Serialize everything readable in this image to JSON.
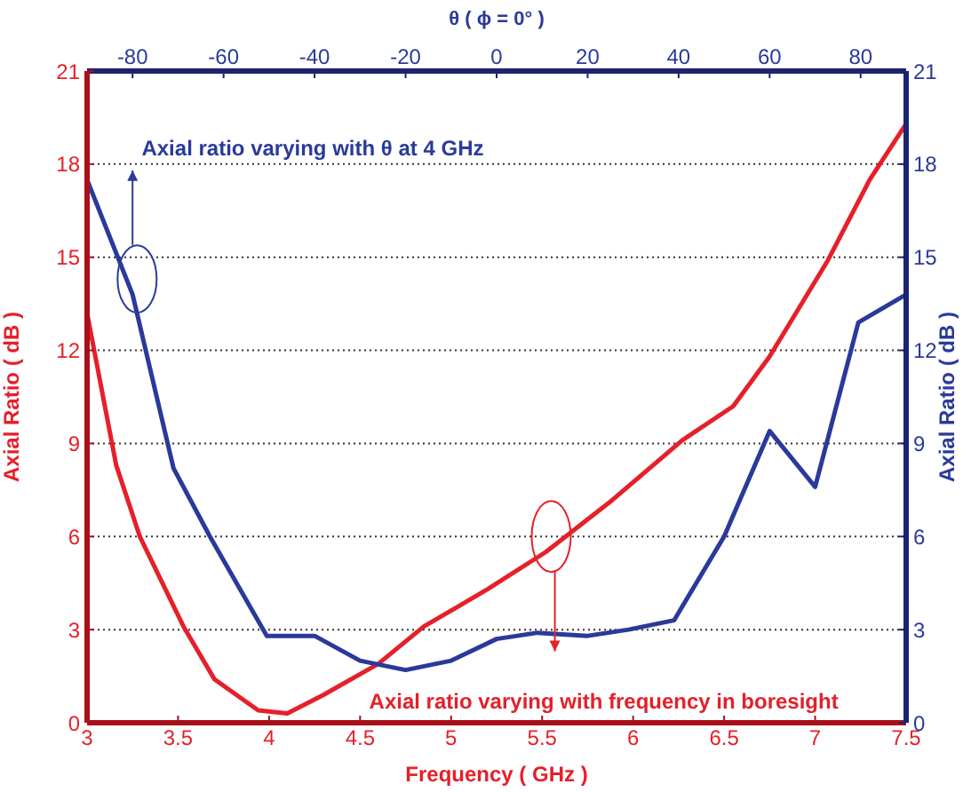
{
  "chart_data": {
    "type": "line",
    "xlabel": "Frequency ( GHz )",
    "x2label": "θ ( ϕ = 0° )",
    "ylabel": "Axial Ratio ( dB )",
    "y2label": "Axial Ratio ( dB )",
    "xlim": [
      3,
      7.5
    ],
    "xticks": [
      3,
      3.5,
      4,
      4.5,
      5,
      5.5,
      6,
      6.5,
      7,
      7.5
    ],
    "x2lim": [
      -90,
      90
    ],
    "x2ticks": [
      -80,
      -60,
      -40,
      -20,
      0,
      20,
      40,
      60,
      80
    ],
    "ylim": [
      0,
      21
    ],
    "yticks": [
      0,
      3,
      6,
      9,
      12,
      15,
      18,
      21
    ],
    "y2lim": [
      0,
      21
    ],
    "y2ticks": [
      0,
      3,
      6,
      9,
      12,
      15,
      18,
      21
    ],
    "grid": "y",
    "marker": "none",
    "line_style": "solid",
    "series": [
      {
        "color": "#e5202a",
        "x": [
          3,
          3.16,
          3.29,
          3.53,
          3.7,
          3.94,
          4.1,
          4.3,
          4.6,
          4.85,
          5.2,
          5.52,
          5.87,
          6.27,
          6.55,
          6.75,
          7.07,
          7.3,
          7.5
        ],
        "values": [
          13.2,
          8.3,
          6,
          3.1,
          1.4,
          0.4,
          0.3,
          0.9,
          1.9,
          3.1,
          4.3,
          5.5,
          7.1,
          9.1,
          10.2,
          11.8,
          14.9,
          17.5,
          19.3
        ]
      },
      {
        "color": "#2a3a9a",
        "axis": "x2",
        "x": [
          -90,
          -80,
          -71,
          -63,
          -50.5,
          -40,
          -30,
          -20,
          -10,
          0,
          9,
          20,
          29,
          39,
          50,
          60,
          70,
          79.5,
          90
        ],
        "values": [
          17.5,
          13.8,
          8.2,
          6,
          2.8,
          2.8,
          2,
          1.7,
          2,
          2.7,
          2.9,
          2.8,
          3,
          3.3,
          6,
          9.4,
          7.6,
          12.9,
          13.8
        ]
      }
    ],
    "annotations": [
      "Axial ratio varying with θ at 4 GHz",
      "Axial ratio varying with frequency in boresight"
    ]
  }
}
